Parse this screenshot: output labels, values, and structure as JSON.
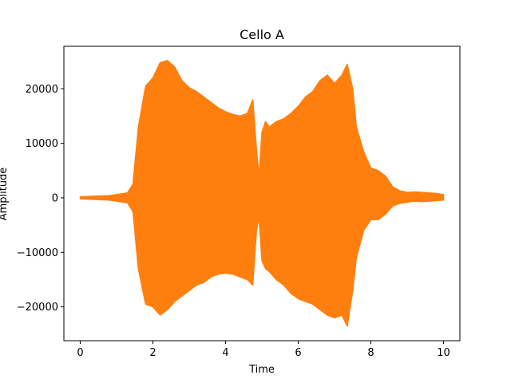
{
  "chart_data": {
    "type": "area",
    "title": "Cello A",
    "xlabel": "Time",
    "ylabel": "Amplitude",
    "xlim": [
      -0.45,
      10.45
    ],
    "ylim": [
      -26200,
      27800
    ],
    "xticks": [
      0,
      2,
      4,
      6,
      8,
      10
    ],
    "yticks": [
      -20000,
      -10000,
      0,
      10000,
      20000
    ],
    "grid": false,
    "series": [
      {
        "color": "#ff7f0e",
        "x": [
          0,
          0.8,
          1.3,
          1.45,
          1.6,
          1.8,
          2.0,
          2.2,
          2.4,
          2.6,
          2.8,
          3.0,
          3.2,
          3.4,
          3.6,
          3.8,
          4.0,
          4.2,
          4.4,
          4.6,
          4.75,
          4.85,
          4.92,
          5.0,
          5.1,
          5.2,
          5.4,
          5.6,
          5.8,
          6.0,
          6.2,
          6.4,
          6.6,
          6.8,
          7.0,
          7.2,
          7.35,
          7.5,
          7.6,
          7.8,
          8.0,
          8.2,
          8.4,
          8.6,
          8.8,
          9.0,
          9.2,
          9.4,
          9.6,
          9.8,
          10.0
        ],
        "upper": [
          200,
          400,
          900,
          2500,
          13000,
          20500,
          22000,
          24800,
          25200,
          24000,
          21500,
          20200,
          19500,
          18500,
          17500,
          16500,
          15800,
          15300,
          15000,
          15500,
          18000,
          9000,
          4000,
          12000,
          14000,
          13000,
          14000,
          14500,
          15500,
          16800,
          18500,
          19500,
          21500,
          22500,
          21000,
          22500,
          24500,
          20000,
          13000,
          8500,
          5500,
          5000,
          4000,
          2000,
          1300,
          1000,
          1100,
          1000,
          900,
          800,
          600
        ],
        "lower": [
          -200,
          -400,
          -900,
          -2500,
          -13000,
          -19500,
          -20000,
          -21500,
          -20500,
          -19000,
          -18000,
          -17000,
          -16000,
          -15500,
          -14500,
          -14000,
          -13800,
          -14000,
          -14500,
          -15000,
          -16000,
          -6000,
          -3500,
          -11500,
          -13000,
          -13500,
          -15000,
          -16000,
          -17500,
          -18500,
          -19000,
          -19500,
          -20500,
          -21500,
          -22000,
          -21500,
          -23500,
          -17000,
          -11000,
          -6000,
          -4000,
          -4000,
          -3000,
          -1500,
          -1000,
          -800,
          -600,
          -700,
          -600,
          -500,
          -400
        ]
      }
    ]
  }
}
